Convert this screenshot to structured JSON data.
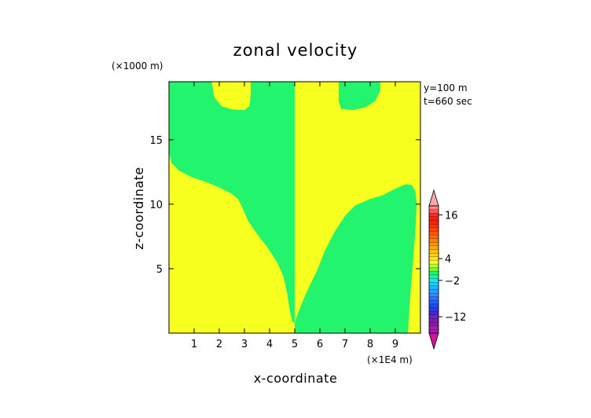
{
  "chart_data": {
    "type": "heatmap",
    "title": "zonal velocity",
    "xlabel": "x-coordinate",
    "ylabel": "z-coordinate",
    "x_unit": "(×1E4 m)",
    "y_unit": "(×1000 m)",
    "annotations": [
      "y=100 m",
      "t=660 sec"
    ],
    "xlim": [
      0,
      10
    ],
    "ylim": [
      0,
      19.5
    ],
    "xticks": [
      1,
      2,
      3,
      4,
      5,
      6,
      7,
      8,
      9
    ],
    "xtick_labels": [
      "1",
      "2",
      "3",
      "4",
      "5",
      "6",
      "7",
      "8",
      "9"
    ],
    "yticks": [
      5,
      10,
      15
    ],
    "ytick_labels": [
      "5",
      "10",
      "15"
    ],
    "fields": {
      "background_yellow": "#f6ff1e",
      "green_region": "#23f46d"
    },
    "regions": [
      {
        "name": "left-green-region",
        "level": "green",
        "polygon": [
          [
            0,
            19.5
          ],
          [
            0,
            14.0
          ],
          [
            0.1,
            13.2
          ],
          [
            0.4,
            12.6
          ],
          [
            0.9,
            12.1
          ],
          [
            1.5,
            11.7
          ],
          [
            2.0,
            11.3
          ],
          [
            2.5,
            10.8
          ],
          [
            2.75,
            10.4
          ],
          [
            2.95,
            9.6
          ],
          [
            3.15,
            8.7
          ],
          [
            3.5,
            7.7
          ],
          [
            3.9,
            6.7
          ],
          [
            4.3,
            5.5
          ],
          [
            4.55,
            4.4
          ],
          [
            4.7,
            3.1
          ],
          [
            4.8,
            1.8
          ],
          [
            4.9,
            0.9
          ],
          [
            5.0,
            0.8
          ],
          [
            5.0,
            19.5
          ]
        ]
      },
      {
        "name": "right-green-region",
        "level": "green",
        "polygon": [
          [
            5.0,
            0.8
          ],
          [
            5.1,
            1.4
          ],
          [
            5.3,
            2.4
          ],
          [
            5.55,
            3.5
          ],
          [
            5.9,
            4.9
          ],
          [
            6.2,
            6.4
          ],
          [
            6.6,
            7.9
          ],
          [
            7.0,
            9.1
          ],
          [
            7.4,
            9.9
          ],
          [
            8.0,
            10.4
          ],
          [
            8.5,
            10.7
          ],
          [
            9.0,
            11.2
          ],
          [
            9.4,
            11.55
          ],
          [
            9.65,
            11.5
          ],
          [
            9.8,
            11.0
          ],
          [
            9.85,
            10.0
          ],
          [
            9.8,
            8.0
          ],
          [
            9.7,
            5.5
          ],
          [
            9.6,
            3.0
          ],
          [
            9.5,
            0.0
          ],
          [
            5.0,
            0.0
          ]
        ]
      },
      {
        "name": "left-upper-yellow-notch",
        "level": "yellow",
        "polygon": [
          [
            1.7,
            19.5
          ],
          [
            1.8,
            18.3
          ],
          [
            2.1,
            17.6
          ],
          [
            2.5,
            17.35
          ],
          [
            3.0,
            17.3
          ],
          [
            3.2,
            17.6
          ],
          [
            3.25,
            18.5
          ],
          [
            3.25,
            19.5
          ]
        ]
      },
      {
        "name": "right-upper-green-notch",
        "level": "green",
        "polygon": [
          [
            6.75,
            19.5
          ],
          [
            6.75,
            18.0
          ],
          [
            6.85,
            17.4
          ],
          [
            7.3,
            17.3
          ],
          [
            7.8,
            17.5
          ],
          [
            8.2,
            18.0
          ],
          [
            8.4,
            18.8
          ],
          [
            8.4,
            19.5
          ]
        ]
      }
    ],
    "colorbar": {
      "min_color": "#d4149f",
      "max_color": "#f4a8a8",
      "tick_labels": [
        "16",
        "4",
        "−2",
        "−12"
      ],
      "tick_values": [
        16,
        4,
        -2,
        -12
      ],
      "bands": [
        {
          "value": -16,
          "color": "#9c1fb6"
        },
        {
          "value": -15,
          "color": "#a020a6"
        },
        {
          "value": -14,
          "color": "#8c1aa8"
        },
        {
          "value": -13,
          "color": "#7a1fb0"
        },
        {
          "value": -12,
          "color": "#6a26c0"
        },
        {
          "value": -11,
          "color": "#3f2cd0"
        },
        {
          "value": -10,
          "color": "#2f3ae0"
        },
        {
          "value": -9,
          "color": "#1f4cf0"
        },
        {
          "value": -8,
          "color": "#1f62ff"
        },
        {
          "value": -7,
          "color": "#2a70ff"
        },
        {
          "value": -6,
          "color": "#3a88ff"
        },
        {
          "value": -5,
          "color": "#2a9cff"
        },
        {
          "value": -4,
          "color": "#1ab4ff"
        },
        {
          "value": -3,
          "color": "#1cd2ff"
        },
        {
          "value": -2,
          "color": "#18e8e0"
        },
        {
          "value": -1,
          "color": "#1ef2b0"
        },
        {
          "value": 0,
          "color": "#23f46d"
        },
        {
          "value": 1,
          "color": "#6ef83a"
        },
        {
          "value": 2,
          "color": "#c8fb2a"
        },
        {
          "value": 3,
          "color": "#f6ff1e"
        },
        {
          "value": 4,
          "color": "#ffe41c"
        },
        {
          "value": 5,
          "color": "#ffd21a"
        },
        {
          "value": 6,
          "color": "#ffbe18"
        },
        {
          "value": 7,
          "color": "#ffa816"
        },
        {
          "value": 8,
          "color": "#ff9414"
        },
        {
          "value": 9,
          "color": "#ff7e12"
        },
        {
          "value": 10,
          "color": "#ff6a10"
        },
        {
          "value": 11,
          "color": "#ff560e"
        },
        {
          "value": 12,
          "color": "#ff440c"
        },
        {
          "value": 13,
          "color": "#ff300a"
        },
        {
          "value": 14,
          "color": "#ff2008"
        },
        {
          "value": 15,
          "color": "#ff1a1a"
        },
        {
          "value": 16,
          "color": "#ff2a2a"
        },
        {
          "value": 17,
          "color": "#ff5a5a"
        },
        {
          "value": 18,
          "color": "#f48a8a"
        }
      ]
    }
  }
}
